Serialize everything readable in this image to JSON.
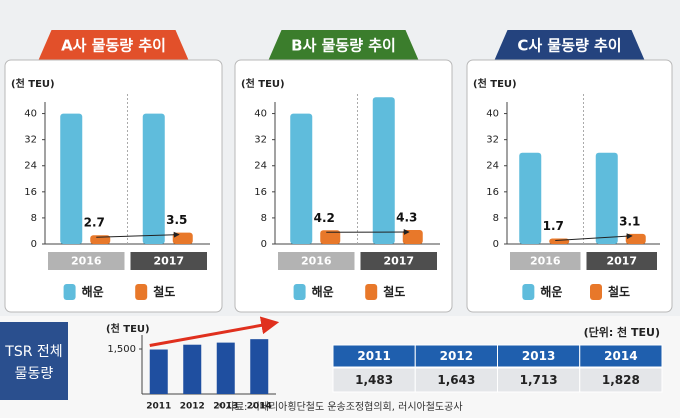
{
  "chart_data": [
    {
      "type": "bar",
      "title": "A사 물동량 추이",
      "title_color": "#e2502a",
      "y_label": "(천 TEU)",
      "categories": [
        "2016",
        "2017"
      ],
      "series": [
        {
          "name": "해운",
          "color": "#5fbcdc",
          "values": [
            40,
            40
          ]
        },
        {
          "name": "철도",
          "color": "#e8782a",
          "values": [
            2.7,
            3.5
          ],
          "show_values": true
        }
      ],
      "ylim": [
        0,
        46
      ],
      "yticks": [
        0,
        8,
        16,
        24,
        32,
        40
      ]
    },
    {
      "type": "bar",
      "title": "B사 물동량 추이",
      "title_color": "#3b7d2c",
      "y_label": "(천 TEU)",
      "categories": [
        "2016",
        "2017"
      ],
      "series": [
        {
          "name": "해운",
          "color": "#5fbcdc",
          "values": [
            40,
            45
          ]
        },
        {
          "name": "철도",
          "color": "#e8782a",
          "values": [
            4.2,
            4.3
          ],
          "show_values": true
        }
      ],
      "ylim": [
        0,
        46
      ],
      "yticks": [
        0,
        8,
        16,
        24,
        32,
        40
      ]
    },
    {
      "type": "bar",
      "title": "C사 물동량 추이",
      "title_color": "#24437e",
      "y_label": "(천 TEU)",
      "categories": [
        "2016",
        "2017"
      ],
      "series": [
        {
          "name": "해운",
          "color": "#5fbcdc",
          "values": [
            28,
            28
          ]
        },
        {
          "name": "철도",
          "color": "#e8782a",
          "values": [
            1.7,
            3.1
          ],
          "show_values": true
        }
      ],
      "ylim": [
        0,
        46
      ],
      "yticks": [
        0,
        8,
        16,
        24,
        32,
        40
      ]
    },
    {
      "type": "tsr",
      "title": [
        "TSR 전체",
        "물동량"
      ],
      "y_label": "(천 TEU)",
      "table_unit": "(단위: 천 TEU)",
      "categories": [
        "2011",
        "2012",
        "2013",
        "2014"
      ],
      "color": "#1f4fa0",
      "values": [
        1483,
        1643,
        1713,
        1828
      ],
      "value_labels": [
        "1,483",
        "1,643",
        "1,713",
        "1,828"
      ],
      "ylim": [
        0,
        2300
      ],
      "yticks": [
        {
          "value": 1500,
          "label": "1,500"
        }
      ]
    }
  ],
  "source": "* 자료: 시베리아횡단철도 운송조정협의회, 러시아철도공사"
}
